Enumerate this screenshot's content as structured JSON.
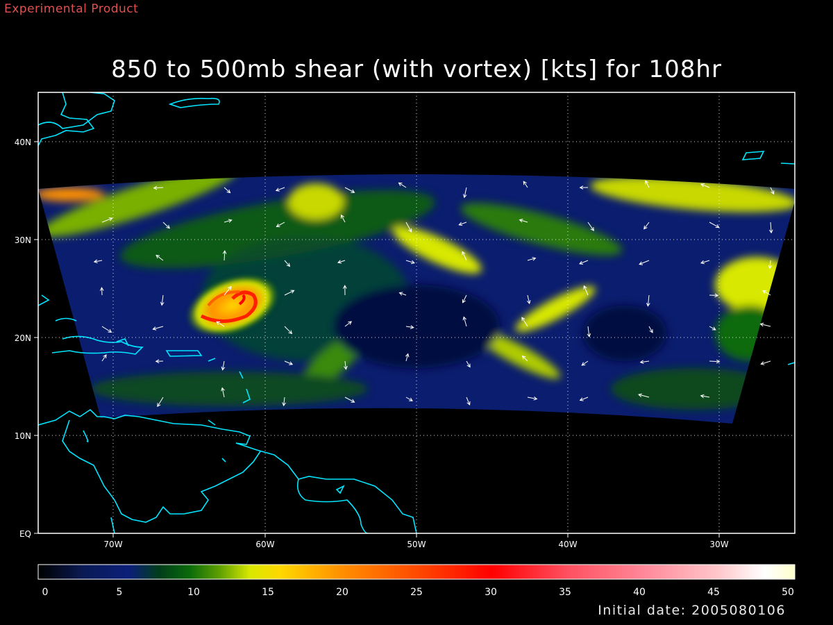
{
  "header": {
    "experimental_label": "Experimental Product",
    "title": "850 to 500mb shear (with vortex) [kts] for 108hr"
  },
  "footer": {
    "initial_date": "Initial date: 2005080106"
  },
  "map": {
    "lon_ticks": [
      "70W",
      "60W",
      "50W",
      "40W",
      "30W"
    ],
    "lat_ticks": [
      "EQ",
      "10N",
      "20N",
      "30N",
      "40N"
    ],
    "coastline_color": "#00e5ff",
    "vortex_center": {
      "lat": "~24N",
      "lon": "~62W"
    }
  },
  "colorbar": {
    "ticks": [
      "0",
      "5",
      "10",
      "15",
      "20",
      "25",
      "30",
      "35",
      "40",
      "45",
      "50"
    ],
    "range": [
      0,
      50
    ],
    "stops": [
      {
        "v": 0,
        "color": "#000000"
      },
      {
        "v": 3,
        "color": "#0a1a55"
      },
      {
        "v": 6,
        "color": "#0b1f7a"
      },
      {
        "v": 8,
        "color": "#003d1a"
      },
      {
        "v": 10,
        "color": "#0a6a0a"
      },
      {
        "v": 12,
        "color": "#5fa000"
      },
      {
        "v": 14,
        "color": "#d8e800"
      },
      {
        "v": 16,
        "color": "#ffd800"
      },
      {
        "v": 20,
        "color": "#ff9000"
      },
      {
        "v": 25,
        "color": "#ff4a00"
      },
      {
        "v": 30,
        "color": "#ff0000"
      },
      {
        "v": 35,
        "color": "#ff5060"
      },
      {
        "v": 40,
        "color": "#ff8898"
      },
      {
        "v": 45,
        "color": "#ffc8cc"
      },
      {
        "v": 48,
        "color": "#ffffff"
      },
      {
        "v": 50,
        "color": "#ffffcc"
      }
    ]
  }
}
